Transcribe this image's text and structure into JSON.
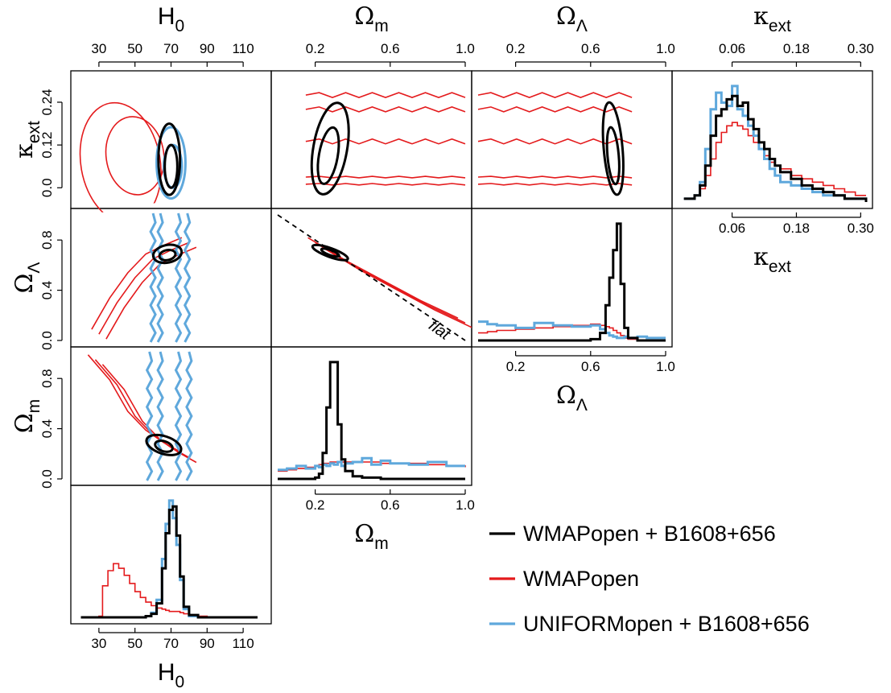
{
  "chart_data": {
    "type": "corner-plot",
    "title": "",
    "parameters": [
      {
        "key": "H0",
        "base": "H",
        "sub": "0",
        "greek": false,
        "ticks": [
          "30",
          "50",
          "70",
          "90",
          "110"
        ],
        "range": [
          18,
          122
        ]
      },
      {
        "key": "Om",
        "base": "Ω",
        "sub": "m",
        "greek": true,
        "ticks": [
          "0.2",
          "0.6",
          "1.0"
        ],
        "range": [
          0.0,
          1.0
        ]
      },
      {
        "key": "OL",
        "base": "Ω",
        "sub": "Λ",
        "greek": true,
        "ticks": [
          "0.2",
          "0.6",
          "1.0"
        ],
        "range": [
          0.0,
          1.0
        ]
      },
      {
        "key": "kext",
        "base": "κ",
        "sub": "ext",
        "greek": true,
        "ticks": [
          "0.06",
          "0.18",
          "0.30"
        ],
        "range": [
          -0.04,
          0.31
        ]
      }
    ],
    "left_axis_ticks": {
      "kext": [
        "0.0",
        "0.12",
        "0.24"
      ],
      "OL": [
        "0.0",
        "0.4",
        "0.8"
      ],
      "Om": [
        "0.0",
        "0.4",
        "0.8"
      ]
    },
    "series": [
      {
        "name": "WMAPopen + B1608+656",
        "color": "#000000"
      },
      {
        "name": "WMAPopen",
        "color": "#e41a1c"
      },
      {
        "name": "UNIFORMopen + B1608+656",
        "color": "#5fa8dc"
      }
    ],
    "annotation": "flat",
    "histograms": {
      "H0": {
        "x": [
          20,
          25,
          30,
          32,
          35,
          38,
          41,
          44,
          47,
          50,
          53,
          56,
          59,
          62,
          65,
          67,
          69,
          71,
          73,
          75,
          77,
          80,
          85,
          90,
          100,
          110,
          118
        ],
        "black": [
          0,
          0,
          0,
          0,
          0,
          0,
          0,
          0,
          0,
          0,
          0,
          0.01,
          0.03,
          0.12,
          0.42,
          0.72,
          0.92,
          0.95,
          0.7,
          0.35,
          0.09,
          0.02,
          0,
          0,
          0,
          0,
          0
        ],
        "red": [
          0,
          0,
          0.01,
          0.27,
          0.4,
          0.46,
          0.42,
          0.36,
          0.29,
          0.22,
          0.17,
          0.13,
          0.1,
          0.08,
          0.07,
          0.06,
          0.05,
          0.05,
          0.05,
          0.04,
          0.03,
          0.02,
          0.01,
          0,
          0,
          0,
          0
        ],
        "blue": [
          0,
          0,
          0,
          0,
          0,
          0,
          0,
          0,
          0,
          0,
          0,
          0.01,
          0.04,
          0.15,
          0.5,
          0.8,
          1.0,
          0.85,
          0.62,
          0.32,
          0.07,
          0.01,
          0,
          0,
          0,
          0,
          0
        ]
      },
      "Om": {
        "x": [
          0.0,
          0.05,
          0.1,
          0.15,
          0.2,
          0.22,
          0.24,
          0.26,
          0.28,
          0.3,
          0.32,
          0.34,
          0.36,
          0.4,
          0.45,
          0.5,
          0.55,
          0.6,
          0.7,
          0.8,
          0.9,
          1.0
        ],
        "black": [
          0,
          0,
          0,
          0,
          0.01,
          0.04,
          0.2,
          0.55,
          0.9,
          0.9,
          0.42,
          0.15,
          0.06,
          0.02,
          0.01,
          0.01,
          0,
          0,
          0,
          0,
          0,
          0
        ],
        "red": [
          0.06,
          0.07,
          0.08,
          0.09,
          0.1,
          0.11,
          0.12,
          0.12,
          0.13,
          0.13,
          0.13,
          0.13,
          0.13,
          0.13,
          0.13,
          0.13,
          0.12,
          0.12,
          0.12,
          0.11,
          0.1,
          0.09
        ],
        "blue": [
          0.07,
          0.08,
          0.1,
          0.08,
          0.1,
          0.09,
          0.11,
          0.1,
          0.12,
          0.11,
          0.13,
          0.1,
          0.12,
          0.13,
          0.16,
          0.11,
          0.14,
          0.12,
          0.11,
          0.13,
          0.1,
          0.1
        ]
      },
      "OL": {
        "x": [
          0.0,
          0.05,
          0.1,
          0.2,
          0.3,
          0.4,
          0.5,
          0.6,
          0.65,
          0.68,
          0.7,
          0.72,
          0.74,
          0.76,
          0.78,
          0.8,
          0.85,
          0.9,
          1.0
        ],
        "black": [
          0,
          0,
          0,
          0,
          0,
          0,
          0,
          0.01,
          0.06,
          0.28,
          0.5,
          0.72,
          0.93,
          0.45,
          0.1,
          0.02,
          0,
          0,
          0
        ],
        "red": [
          0.06,
          0.07,
          0.08,
          0.09,
          0.1,
          0.11,
          0.12,
          0.13,
          0.12,
          0.11,
          0.1,
          0.08,
          0.06,
          0.04,
          0.02,
          0.01,
          0,
          0,
          0
        ],
        "blue": [
          0.15,
          0.13,
          0.12,
          0.1,
          0.14,
          0.12,
          0.11,
          0.12,
          0.09,
          0.06,
          0.04,
          0.03,
          0.02,
          0.02,
          0.03,
          0.02,
          0.03,
          0.02,
          0.02
        ]
      },
      "kext": {
        "x": [
          -0.03,
          -0.01,
          0.0,
          0.01,
          0.02,
          0.03,
          0.04,
          0.05,
          0.06,
          0.07,
          0.08,
          0.09,
          0.1,
          0.11,
          0.12,
          0.13,
          0.14,
          0.15,
          0.17,
          0.19,
          0.21,
          0.23,
          0.25,
          0.27,
          0.29,
          0.31
        ],
        "black": [
          0.01,
          0.02,
          0.05,
          0.11,
          0.2,
          0.26,
          0.28,
          0.31,
          0.32,
          0.29,
          0.3,
          0.25,
          0.22,
          0.18,
          0.16,
          0.13,
          0.11,
          0.09,
          0.07,
          0.05,
          0.04,
          0.03,
          0.02,
          0.01,
          0.01,
          0
        ],
        "red": [
          0.01,
          0.02,
          0.04,
          0.08,
          0.13,
          0.18,
          0.21,
          0.23,
          0.24,
          0.23,
          0.22,
          0.2,
          0.18,
          0.16,
          0.14,
          0.12,
          0.11,
          0.1,
          0.08,
          0.07,
          0.06,
          0.05,
          0.04,
          0.03,
          0.02,
          0.02
        ],
        "blue": [
          0.01,
          0.02,
          0.06,
          0.16,
          0.28,
          0.33,
          0.3,
          0.29,
          0.35,
          0.28,
          0.26,
          0.23,
          0.2,
          0.16,
          0.13,
          0.1,
          0.08,
          0.06,
          0.05,
          0.04,
          0.03,
          0.02,
          0.02,
          0.01,
          0.01,
          0
        ]
      }
    },
    "contours": {
      "kext_vs_H0": {
        "red": [
          {
            "center": [
              42,
              0.07
            ],
            "radius": [
              22,
              0.17
            ],
            "rotate": -10
          },
          {
            "center": [
              50,
              0.09
            ],
            "radius": [
              16,
              0.11
            ],
            "rotate": -8
          }
        ],
        "black": [
          {
            "center": [
              69,
              0.08
            ],
            "radius": [
              6,
              0.1
            ],
            "rotate": 0
          },
          {
            "center": [
              70,
              0.06
            ],
            "radius": [
              3.5,
              0.06
            ],
            "rotate": 0
          }
        ],
        "blue": [
          {
            "center": [
              70,
              0.07
            ],
            "radius": [
              8,
              0.1
            ],
            "rotate": 0
          },
          {
            "center": [
              71,
              0.06
            ],
            "radius": [
              5,
              0.06
            ],
            "rotate": 0
          }
        ]
      },
      "OL_vs_H0": {
        "red_band": [
          [
            30,
            0.05
          ],
          [
            40,
            0.3
          ],
          [
            50,
            0.5
          ],
          [
            60,
            0.65
          ],
          [
            70,
            0.72
          ],
          [
            80,
            0.78
          ]
        ],
        "black": [
          {
            "center": [
              68,
              0.69
            ],
            "radius": [
              8,
              0.07
            ],
            "rotate": -12
          },
          {
            "center": [
              68,
              0.68
            ],
            "radius": [
              4.5,
              0.04
            ],
            "rotate": -12
          }
        ],
        "blue_lines": [
          60,
          64,
          74,
          79
        ]
      },
      "Om_vs_H0": {
        "red_band": [
          [
            28,
            0.95
          ],
          [
            40,
            0.75
          ],
          [
            50,
            0.5
          ],
          [
            60,
            0.35
          ],
          [
            70,
            0.25
          ],
          [
            80,
            0.17
          ]
        ],
        "black": [
          {
            "center": [
              66,
              0.27
            ],
            "radius": [
              10,
              0.07
            ],
            "rotate": 18
          },
          {
            "center": [
              66,
              0.26
            ],
            "radius": [
              5,
              0.04
            ],
            "rotate": 18
          }
        ],
        "blue_lines": [
          58,
          64,
          74,
          80
        ]
      },
      "kext_vs_Om": {
        "red_box": [
          0.15,
          1.0,
          0.0,
          0.29
        ],
        "black": [
          {
            "center": [
              0.28,
              0.11
            ],
            "radius": [
              0.09,
              0.13
            ],
            "rotate": 10
          },
          {
            "center": [
              0.27,
              0.09
            ],
            "radius": [
              0.05,
              0.08
            ],
            "rotate": 10
          }
        ]
      },
      "OL_vs_Om": {
        "red_band": [
          [
            0.2,
            0.78
          ],
          [
            0.4,
            0.6
          ],
          [
            0.6,
            0.44
          ],
          [
            0.8,
            0.28
          ],
          [
            1.0,
            0.14
          ]
        ],
        "black": [
          {
            "center": [
              0.28,
              0.7
            ],
            "radius": [
              0.1,
              0.035
            ],
            "rotate": 20
          },
          {
            "center": [
              0.28,
              0.7
            ],
            "radius": [
              0.05,
              0.02
            ],
            "rotate": 20
          }
        ]
      },
      "kext_vs_OL": {
        "red_box": [
          0.0,
          0.82,
          0.0,
          0.29
        ],
        "black": [
          {
            "center": [
              0.72,
              0.11
            ],
            "radius": [
              0.05,
              0.13
            ],
            "rotate": -5
          },
          {
            "center": [
              0.72,
              0.09
            ],
            "radius": [
              0.03,
              0.08
            ],
            "rotate": -5
          }
        ]
      }
    }
  }
}
